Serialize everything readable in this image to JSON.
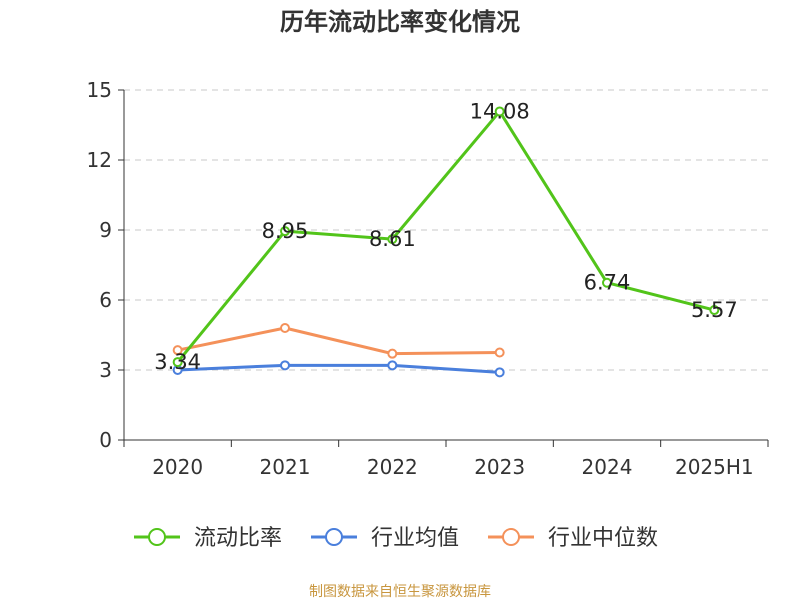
{
  "chart_data": {
    "type": "line",
    "title": "历年流动比率变化情况",
    "categories": [
      "2020",
      "2021",
      "2022",
      "2023",
      "2024",
      "2025H1"
    ],
    "yticks": [
      "0",
      "3",
      "6",
      "9",
      "12",
      "15"
    ],
    "ylim": [
      0,
      15
    ],
    "grid": true,
    "legend_position": "bottom",
    "series": [
      {
        "name": "流动比率",
        "color": "#52c41a",
        "values": [
          3.34,
          8.95,
          8.61,
          14.08,
          6.74,
          5.57
        ],
        "labels": [
          "3.34",
          "8.95",
          "8.61",
          "14.08",
          "6.74",
          "5.57"
        ]
      },
      {
        "name": "行业均值",
        "color": "#4a7fdc",
        "values": [
          3.0,
          3.2,
          3.2,
          2.9,
          null,
          null
        ]
      },
      {
        "name": "行业中位数",
        "color": "#f4915a",
        "values": [
          3.85,
          4.8,
          3.7,
          3.75,
          null,
          null
        ]
      }
    ],
    "source": "制图数据来自恒生聚源数据库"
  }
}
